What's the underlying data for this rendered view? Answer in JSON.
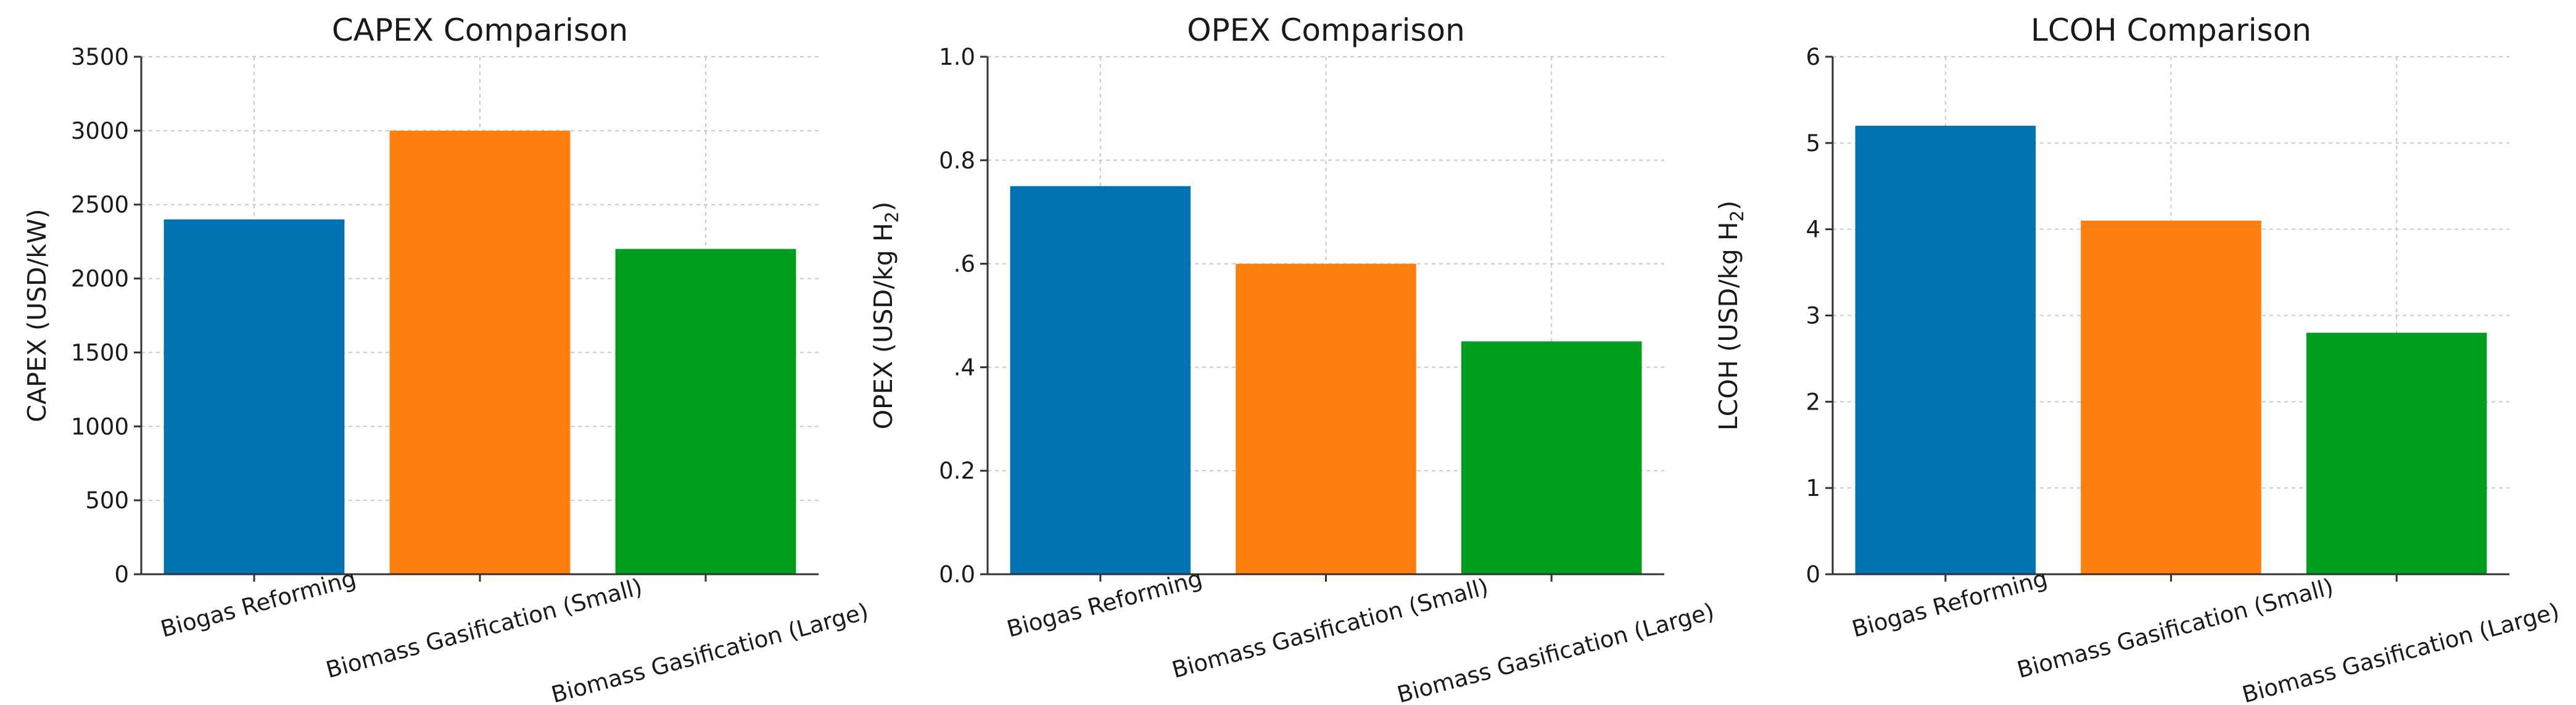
{
  "chart_data": [
    {
      "type": "bar",
      "title": "CAPEX Comparison",
      "ylabel": "CAPEX (USD/kW)",
      "categories": [
        "Biogas Reforming",
        "Biomass Gasification (Small)",
        "Biomass Gasification (Large)"
      ],
      "values": [
        2400,
        3000,
        2200
      ],
      "colors": [
        "#0072b2",
        "#ff7f0e",
        "#009e1e"
      ],
      "ylim": [
        0,
        3500
      ],
      "yticks": [
        0,
        500,
        1000,
        1500,
        2000,
        2500,
        3000,
        3500
      ],
      "ytick_labels": [
        "0",
        "500",
        "1000",
        "1500",
        "2000",
        "2500",
        "3000",
        "3500"
      ],
      "grid": true
    },
    {
      "type": "bar",
      "title": "OPEX Comparison",
      "ylabel": "OPEX (USD/kg H",
      "ylabel_subscript": "2",
      "ylabel_suffix": ")",
      "categories": [
        "Biogas Reforming",
        "Biomass Gasification (Small)",
        "Biomass Gasification (Large)"
      ],
      "values": [
        0.75,
        0.6,
        0.45
      ],
      "colors": [
        "#0072b2",
        "#ff7f0e",
        "#009e1e"
      ],
      "ylim": [
        0,
        1.0
      ],
      "yticks": [
        0,
        0.2,
        0.4,
        0.6,
        0.8,
        1.0
      ],
      "ytick_labels": [
        "0.0",
        "0.2",
        ".4",
        ".6",
        "0.8",
        "1.0"
      ],
      "grid": true
    },
    {
      "type": "bar",
      "title": "LCOH Comparison",
      "ylabel": "LCOH (USD/kg H",
      "ylabel_subscript": "2",
      "ylabel_suffix": ")",
      "categories": [
        "Biogas Reforming",
        "Biomass Gasification (Small)",
        "Biomass Gasification (Large)"
      ],
      "values": [
        5.2,
        4.1,
        2.8
      ],
      "colors": [
        "#0072b2",
        "#ff7f0e",
        "#009e1e"
      ],
      "ylim": [
        0,
        6
      ],
      "yticks": [
        0,
        1,
        2,
        3,
        4,
        5,
        6
      ],
      "ytick_labels": [
        "0",
        "1",
        "2",
        "3",
        "4",
        "5",
        "6"
      ],
      "grid": true
    }
  ]
}
